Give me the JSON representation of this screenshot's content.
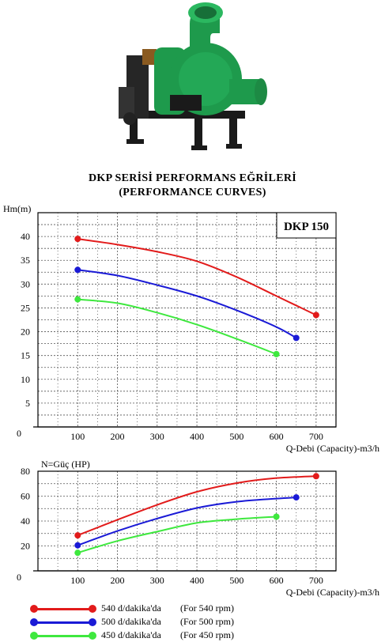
{
  "header": {
    "title_line1": "DKP SERİSİ  PERFORMANS EĞRİLERİ",
    "title_line2": "(PERFORMANCE CURVES)"
  },
  "colors": {
    "pump_body": "#1e9a4c",
    "pump_frame": "#1a1a1a",
    "grid": "#555555",
    "series_540": "#e21b1b",
    "series_500": "#1a1ad6",
    "series_450": "#3ee83e"
  },
  "chart_data": [
    {
      "type": "line",
      "ylabel": "Hm(m)",
      "xlabel": "Q-Debi (Capacity)-m3/h",
      "model_label": "DKP 150",
      "xlim": [
        0,
        750
      ],
      "ylim": [
        0,
        45
      ],
      "x_ticks": [
        100,
        200,
        300,
        400,
        500,
        600,
        700
      ],
      "y_ticks": [
        5,
        10,
        15,
        20,
        25,
        30,
        35,
        40
      ],
      "origin_label": "0",
      "grid": true,
      "series": [
        {
          "name": "540 d/dakika'da",
          "x": [
            100,
            200,
            300,
            400,
            500,
            600,
            700
          ],
          "y": [
            39.5,
            38.3,
            36.8,
            34.8,
            31.5,
            27.5,
            23.5
          ]
        },
        {
          "name": "500 d/dakika'da",
          "x": [
            100,
            200,
            300,
            400,
            500,
            600,
            650
          ],
          "y": [
            33,
            31.8,
            29.8,
            27.5,
            24.5,
            21,
            18.7
          ]
        },
        {
          "name": "450 d/dakika'da",
          "x": [
            100,
            200,
            300,
            400,
            500,
            600
          ],
          "y": [
            26.8,
            26,
            24,
            21.5,
            18.5,
            15.3
          ]
        }
      ]
    },
    {
      "type": "line",
      "ylabel": "N=Güç (HP)",
      "xlabel": "Q-Debi (Capacity)-m3/h",
      "xlim": [
        0,
        750
      ],
      "ylim": [
        0,
        80
      ],
      "x_ticks": [
        100,
        200,
        300,
        400,
        500,
        600,
        700
      ],
      "y_ticks": [
        20,
        40,
        60,
        80
      ],
      "origin_label": "0",
      "grid": true,
      "series": [
        {
          "name": "540 d/dakika'da",
          "x": [
            100,
            200,
            300,
            400,
            500,
            600,
            700
          ],
          "y": [
            28.5,
            41,
            53,
            63.5,
            70.5,
            74.5,
            76
          ]
        },
        {
          "name": "500 d/dakika'da",
          "x": [
            100,
            200,
            300,
            400,
            500,
            600,
            650
          ],
          "y": [
            20.5,
            32,
            42,
            50.5,
            55.5,
            58,
            59
          ]
        },
        {
          "name": "450 d/dakika'da",
          "x": [
            100,
            200,
            300,
            400,
            500,
            600
          ],
          "y": [
            14.5,
            24,
            31.5,
            38.5,
            41.5,
            43.5
          ]
        }
      ]
    }
  ],
  "legend": [
    {
      "label": "540 d/dakika'da",
      "rpm": "(For  540 rpm)",
      "color": "#e21b1b"
    },
    {
      "label": "500 d/dakika'da",
      "rpm": "(For  500 rpm)",
      "color": "#1a1ad6"
    },
    {
      "label": "450 d/dakika'da",
      "rpm": "(For  450 rpm)",
      "color": "#3ee83e"
    }
  ]
}
